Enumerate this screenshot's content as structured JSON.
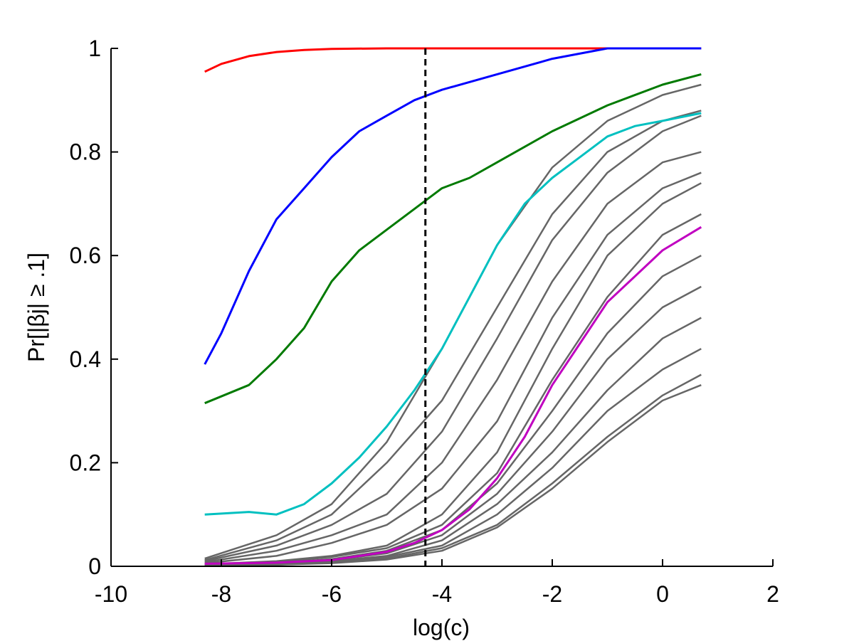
{
  "chart_data": {
    "type": "line",
    "title": "",
    "xlabel": "log(c)",
    "ylabel": "Pr[|βj| ≥ .1]",
    "xlim": [
      -10,
      2
    ],
    "ylim": [
      0,
      1
    ],
    "xticks": [
      -10,
      -8,
      -6,
      -4,
      -2,
      0,
      2
    ],
    "yticks": [
      0,
      0.2,
      0.4,
      0.6,
      0.8,
      1
    ],
    "xtick_labels": [
      "-10",
      "-8",
      "-6",
      "-4",
      "-2",
      "0",
      "2"
    ],
    "ytick_labels": [
      "0",
      "0.2",
      "0.4",
      "0.6",
      "0.8",
      "1"
    ],
    "grid": false,
    "legend": "none",
    "vline": {
      "x": -4.3,
      "style": "dashed",
      "color": "#000000"
    },
    "colors": {
      "red": "#ff0000",
      "blue": "#0000ff",
      "green": "#007a00",
      "cyan": "#00c0c0",
      "magenta": "#c000c0",
      "gray": "#666666"
    },
    "series": [
      {
        "color": "#666666",
        "x": [
          -8.3,
          -7,
          -6,
          -5,
          -4,
          -3,
          -2,
          -1,
          0,
          0.7
        ],
        "y": [
          0.015,
          0.06,
          0.12,
          0.24,
          0.42,
          0.62,
          0.77,
          0.86,
          0.91,
          0.93
        ]
      },
      {
        "color": "#666666",
        "x": [
          -8.3,
          -7,
          -6,
          -5,
          -4,
          -3,
          -2,
          -1,
          0,
          0.7
        ],
        "y": [
          0.012,
          0.05,
          0.1,
          0.2,
          0.32,
          0.5,
          0.68,
          0.8,
          0.86,
          0.88
        ]
      },
      {
        "color": "#666666",
        "x": [
          -8.3,
          -7,
          -6,
          -5,
          -4,
          -3,
          -2,
          -1,
          0,
          0.7
        ],
        "y": [
          0.01,
          0.04,
          0.08,
          0.14,
          0.26,
          0.44,
          0.63,
          0.76,
          0.84,
          0.87
        ]
      },
      {
        "color": "#666666",
        "x": [
          -8.3,
          -7,
          -6,
          -5,
          -4,
          -3,
          -2,
          -1,
          0,
          0.7
        ],
        "y": [
          0.008,
          0.03,
          0.06,
          0.1,
          0.2,
          0.36,
          0.55,
          0.7,
          0.78,
          0.8
        ]
      },
      {
        "color": "#666666",
        "x": [
          -8.3,
          -7,
          -6,
          -5,
          -4,
          -3,
          -2,
          -1,
          0,
          0.7
        ],
        "y": [
          0.006,
          0.02,
          0.045,
          0.08,
          0.15,
          0.28,
          0.48,
          0.64,
          0.73,
          0.76
        ]
      },
      {
        "color": "#666666",
        "x": [
          -8.3,
          -7,
          -6,
          -5,
          -4,
          -3,
          -2,
          -1,
          0,
          0.7
        ],
        "y": [
          0.004,
          0.01,
          0.02,
          0.04,
          0.1,
          0.22,
          0.42,
          0.6,
          0.7,
          0.74
        ]
      },
      {
        "color": "#666666",
        "x": [
          -8.3,
          -7,
          -6,
          -5,
          -4,
          -3,
          -2,
          -1,
          0,
          0.7
        ],
        "y": [
          0.003,
          0.008,
          0.018,
          0.035,
          0.08,
          0.18,
          0.36,
          0.52,
          0.64,
          0.68
        ]
      },
      {
        "color": "#666666",
        "x": [
          -8.3,
          -7,
          -6,
          -5,
          -4,
          -3,
          -2,
          -1,
          0,
          0.7
        ],
        "y": [
          0.003,
          0.006,
          0.014,
          0.03,
          0.07,
          0.16,
          0.3,
          0.45,
          0.56,
          0.6
        ]
      },
      {
        "color": "#666666",
        "x": [
          -8.3,
          -7,
          -6,
          -5,
          -4,
          -3,
          -2,
          -1,
          0,
          0.7
        ],
        "y": [
          0.002,
          0.005,
          0.012,
          0.025,
          0.06,
          0.14,
          0.26,
          0.4,
          0.5,
          0.54
        ]
      },
      {
        "color": "#666666",
        "x": [
          -8.3,
          -7,
          -6,
          -5,
          -4,
          -3,
          -2,
          -1,
          0,
          0.7
        ],
        "y": [
          0.002,
          0.004,
          0.01,
          0.02,
          0.05,
          0.12,
          0.22,
          0.34,
          0.44,
          0.48
        ]
      },
      {
        "color": "#666666",
        "x": [
          -8.3,
          -7,
          -6,
          -5,
          -4,
          -3,
          -2,
          -1,
          0,
          0.7
        ],
        "y": [
          0.002,
          0.004,
          0.009,
          0.018,
          0.04,
          0.1,
          0.19,
          0.3,
          0.38,
          0.42
        ]
      },
      {
        "color": "#666666",
        "x": [
          -8.3,
          -7,
          -6,
          -5,
          -4,
          -3,
          -2,
          -1,
          0,
          0.7
        ],
        "y": [
          0.001,
          0.003,
          0.007,
          0.015,
          0.035,
          0.08,
          0.16,
          0.25,
          0.33,
          0.37
        ]
      },
      {
        "color": "#666666",
        "x": [
          -8.3,
          -7,
          -6,
          -5,
          -4,
          -3,
          -2,
          -1,
          0,
          0.7
        ],
        "y": [
          0.001,
          0.003,
          0.006,
          0.013,
          0.03,
          0.075,
          0.15,
          0.24,
          0.32,
          0.35
        ]
      },
      {
        "color": "#ff0000",
        "x": [
          -8.3,
          -8,
          -7.5,
          -7,
          -6.5,
          -6,
          -5,
          -4,
          -2,
          0,
          0.7
        ],
        "y": [
          0.955,
          0.97,
          0.985,
          0.993,
          0.997,
          0.999,
          1.0,
          1.0,
          1.0,
          1.0,
          1.0
        ]
      },
      {
        "color": "#0000ff",
        "x": [
          -8.3,
          -8,
          -7.5,
          -7,
          -6.5,
          -6,
          -5.5,
          -5,
          -4.5,
          -4,
          -3,
          -2,
          -1,
          0,
          0.7
        ],
        "y": [
          0.39,
          0.45,
          0.57,
          0.67,
          0.73,
          0.79,
          0.84,
          0.87,
          0.9,
          0.92,
          0.95,
          0.98,
          1.0,
          1.0,
          1.0
        ]
      },
      {
        "color": "#007a00",
        "x": [
          -8.3,
          -7.5,
          -7,
          -6.5,
          -6,
          -5.5,
          -5,
          -4.5,
          -4,
          -3.5,
          -3,
          -2.5,
          -2,
          -1,
          0,
          0.7
        ],
        "y": [
          0.315,
          0.35,
          0.4,
          0.46,
          0.55,
          0.61,
          0.65,
          0.69,
          0.73,
          0.75,
          0.78,
          0.81,
          0.84,
          0.89,
          0.93,
          0.95
        ]
      },
      {
        "color": "#00c0c0",
        "x": [
          -8.3,
          -7.5,
          -7,
          -6.5,
          -6,
          -5.5,
          -5,
          -4.5,
          -4,
          -3.5,
          -3,
          -2.5,
          -2,
          -1.5,
          -1,
          -0.5,
          0,
          0.7
        ],
        "y": [
          0.1,
          0.105,
          0.1,
          0.12,
          0.16,
          0.21,
          0.27,
          0.34,
          0.42,
          0.52,
          0.62,
          0.7,
          0.75,
          0.79,
          0.83,
          0.85,
          0.86,
          0.875
        ]
      },
      {
        "color": "#c000c0",
        "x": [
          -8.3,
          -7,
          -6,
          -5,
          -4.5,
          -4,
          -3.5,
          -3,
          -2.5,
          -2,
          -1.5,
          -1,
          -0.5,
          0,
          0.7
        ],
        "y": [
          0.005,
          0.007,
          0.012,
          0.028,
          0.045,
          0.07,
          0.11,
          0.17,
          0.25,
          0.35,
          0.43,
          0.51,
          0.56,
          0.61,
          0.655
        ]
      }
    ]
  }
}
